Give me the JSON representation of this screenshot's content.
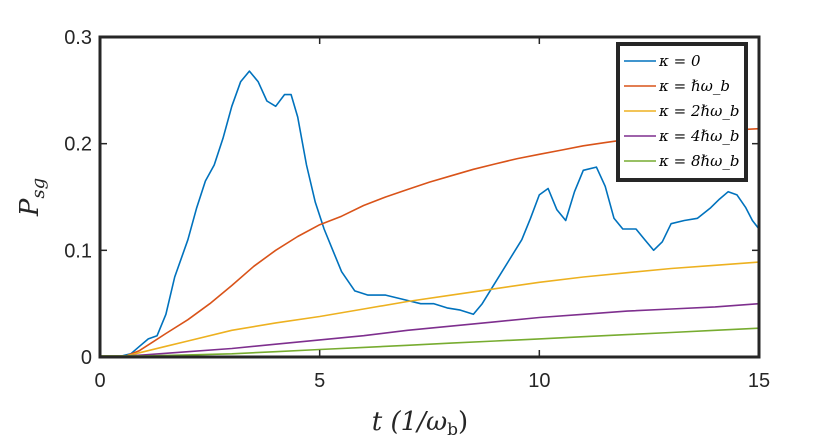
{
  "chart_data": {
    "type": "line",
    "title": "",
    "xlabel": "t (1/ω_b)",
    "ylabel": "P_sg",
    "xlim": [
      0,
      15
    ],
    "ylim": [
      0,
      0.3
    ],
    "xticks": [
      0,
      5,
      10,
      15
    ],
    "yticks": [
      0,
      0.1,
      0.2,
      0.3
    ],
    "xtick_labels": [
      "0",
      "5",
      "10",
      "15"
    ],
    "ytick_labels": [
      "0",
      "0.1",
      "0.2",
      "0.3"
    ],
    "legend_position": "top-right",
    "grid": false,
    "series": [
      {
        "name": "κ = 0",
        "color": "#0072BD",
        "points": [
          [
            0,
            0.001
          ],
          [
            0.5,
            0.001
          ],
          [
            0.7,
            0.003
          ],
          [
            0.9,
            0.01
          ],
          [
            1.1,
            0.017
          ],
          [
            1.3,
            0.02
          ],
          [
            1.5,
            0.04
          ],
          [
            1.7,
            0.075
          ],
          [
            2.0,
            0.11
          ],
          [
            2.2,
            0.14
          ],
          [
            2.4,
            0.165
          ],
          [
            2.6,
            0.18
          ],
          [
            2.8,
            0.205
          ],
          [
            3.0,
            0.235
          ],
          [
            3.2,
            0.258
          ],
          [
            3.4,
            0.268
          ],
          [
            3.6,
            0.258
          ],
          [
            3.8,
            0.24
          ],
          [
            4.0,
            0.235
          ],
          [
            4.2,
            0.246
          ],
          [
            4.35,
            0.246
          ],
          [
            4.5,
            0.225
          ],
          [
            4.7,
            0.18
          ],
          [
            4.9,
            0.145
          ],
          [
            5.1,
            0.12
          ],
          [
            5.3,
            0.1
          ],
          [
            5.5,
            0.08
          ],
          [
            5.8,
            0.062
          ],
          [
            6.1,
            0.058
          ],
          [
            6.5,
            0.058
          ],
          [
            6.9,
            0.054
          ],
          [
            7.3,
            0.05
          ],
          [
            7.6,
            0.05
          ],
          [
            7.9,
            0.046
          ],
          [
            8.2,
            0.044
          ],
          [
            8.5,
            0.04
          ],
          [
            8.7,
            0.05
          ],
          [
            9.0,
            0.07
          ],
          [
            9.3,
            0.09
          ],
          [
            9.6,
            0.11
          ],
          [
            9.8,
            0.13
          ],
          [
            10.0,
            0.152
          ],
          [
            10.2,
            0.158
          ],
          [
            10.4,
            0.138
          ],
          [
            10.6,
            0.128
          ],
          [
            10.8,
            0.155
          ],
          [
            11.0,
            0.175
          ],
          [
            11.3,
            0.178
          ],
          [
            11.5,
            0.16
          ],
          [
            11.7,
            0.13
          ],
          [
            11.9,
            0.12
          ],
          [
            12.2,
            0.12
          ],
          [
            12.4,
            0.11
          ],
          [
            12.6,
            0.1
          ],
          [
            12.8,
            0.108
          ],
          [
            13.0,
            0.125
          ],
          [
            13.3,
            0.128
          ],
          [
            13.6,
            0.13
          ],
          [
            13.9,
            0.14
          ],
          [
            14.1,
            0.148
          ],
          [
            14.3,
            0.155
          ],
          [
            14.5,
            0.152
          ],
          [
            14.7,
            0.14
          ],
          [
            14.85,
            0.128
          ],
          [
            15.0,
            0.12
          ]
        ]
      },
      {
        "name": "κ = ℏω_b",
        "color": "#D95319",
        "points": [
          [
            0,
            0.001
          ],
          [
            0.6,
            0.001
          ],
          [
            0.9,
            0.006
          ],
          [
            1.2,
            0.014
          ],
          [
            1.5,
            0.022
          ],
          [
            2.0,
            0.035
          ],
          [
            2.5,
            0.05
          ],
          [
            3.0,
            0.067
          ],
          [
            3.5,
            0.085
          ],
          [
            4.0,
            0.1
          ],
          [
            4.5,
            0.113
          ],
          [
            5.0,
            0.124
          ],
          [
            5.5,
            0.132
          ],
          [
            6.0,
            0.142
          ],
          [
            6.5,
            0.15
          ],
          [
            7.0,
            0.157
          ],
          [
            7.5,
            0.164
          ],
          [
            8.0,
            0.17
          ],
          [
            8.5,
            0.176
          ],
          [
            9.0,
            0.181
          ],
          [
            9.5,
            0.186
          ],
          [
            10.0,
            0.19
          ],
          [
            10.5,
            0.194
          ],
          [
            11.0,
            0.198
          ],
          [
            11.5,
            0.201
          ],
          [
            12.0,
            0.204
          ],
          [
            12.5,
            0.206
          ],
          [
            13.0,
            0.208
          ],
          [
            13.5,
            0.21
          ],
          [
            14.0,
            0.212
          ],
          [
            14.5,
            0.213
          ],
          [
            15.0,
            0.214
          ]
        ]
      },
      {
        "name": "κ = 2ℏω_b",
        "color": "#EDB120",
        "points": [
          [
            0,
            0.001
          ],
          [
            0.6,
            0.001
          ],
          [
            1.0,
            0.005
          ],
          [
            1.5,
            0.01
          ],
          [
            2.0,
            0.015
          ],
          [
            3.0,
            0.025
          ],
          [
            4.0,
            0.032
          ],
          [
            5.0,
            0.038
          ],
          [
            6.0,
            0.045
          ],
          [
            7.0,
            0.052
          ],
          [
            8.0,
            0.058
          ],
          [
            9.0,
            0.064
          ],
          [
            10.0,
            0.07
          ],
          [
            11.0,
            0.075
          ],
          [
            12.0,
            0.079
          ],
          [
            13.0,
            0.083
          ],
          [
            14.0,
            0.086
          ],
          [
            15.0,
            0.089
          ]
        ]
      },
      {
        "name": "κ = 4ℏω_b",
        "color": "#7E2F8E",
        "points": [
          [
            0,
            0.001
          ],
          [
            0.6,
            0.001
          ],
          [
            1.0,
            0.002
          ],
          [
            2.0,
            0.005
          ],
          [
            3.0,
            0.008
          ],
          [
            4.0,
            0.012
          ],
          [
            5.0,
            0.016
          ],
          [
            6.0,
            0.02
          ],
          [
            7.0,
            0.025
          ],
          [
            8.0,
            0.029
          ],
          [
            9.0,
            0.033
          ],
          [
            10.0,
            0.037
          ],
          [
            11.0,
            0.04
          ],
          [
            12.0,
            0.043
          ],
          [
            13.0,
            0.045
          ],
          [
            14.0,
            0.047
          ],
          [
            15.0,
            0.05
          ]
        ]
      },
      {
        "name": "κ = 8ℏω_b",
        "color": "#77AC30",
        "points": [
          [
            0,
            0.001
          ],
          [
            0.6,
            0.001
          ],
          [
            1.0,
            0.001
          ],
          [
            2.0,
            0.002
          ],
          [
            3.0,
            0.003
          ],
          [
            4.0,
            0.005
          ],
          [
            5.0,
            0.007
          ],
          [
            6.0,
            0.009
          ],
          [
            7.0,
            0.011
          ],
          [
            8.0,
            0.013
          ],
          [
            9.0,
            0.015
          ],
          [
            10.0,
            0.017
          ],
          [
            11.0,
            0.019
          ],
          [
            12.0,
            0.021
          ],
          [
            13.0,
            0.023
          ],
          [
            14.0,
            0.025
          ],
          [
            15.0,
            0.027
          ]
        ]
      }
    ]
  }
}
